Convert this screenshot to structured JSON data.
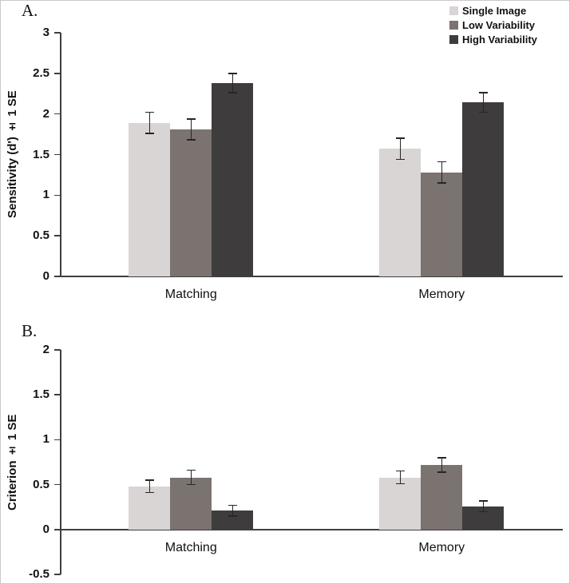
{
  "figure": {
    "panel_a_label": "A.",
    "panel_b_label": "B."
  },
  "legend": {
    "position": "top-right",
    "items": [
      {
        "label": "Single Image",
        "color": "#d8d5d4"
      },
      {
        "label": "Low Variability",
        "color": "#7b7370"
      },
      {
        "label": "High Variability",
        "color": "#3e3c3d"
      }
    ]
  },
  "chart_data": [
    {
      "type": "bar",
      "title": "",
      "ylabel": "Sensitivity (d') ± 1 SE",
      "xlabel": "",
      "categories": [
        "Matching",
        "Memory"
      ],
      "series": [
        {
          "name": "Single Image",
          "color": "#d8d5d4",
          "values": [
            1.89,
            1.57
          ],
          "errors": [
            0.13,
            0.13
          ]
        },
        {
          "name": "Low Variability",
          "color": "#7b7370",
          "values": [
            1.81,
            1.28
          ],
          "errors": [
            0.13,
            0.13
          ]
        },
        {
          "name": "High Variability",
          "color": "#3e3c3d",
          "values": [
            2.38,
            2.14
          ],
          "errors": [
            0.12,
            0.12
          ]
        }
      ],
      "ylim": [
        0,
        3
      ],
      "ytick_step": 0.5,
      "yticks": [
        0,
        0.5,
        1,
        1.5,
        2,
        2.5,
        3
      ],
      "grid": false,
      "legend_position": "top-right",
      "error_bars": true
    },
    {
      "type": "bar",
      "title": "",
      "ylabel": "Criterion ± 1 SE",
      "xlabel": "",
      "categories": [
        "Matching",
        "Memory"
      ],
      "series": [
        {
          "name": "Single Image",
          "color": "#d8d5d4",
          "values": [
            0.48,
            0.58
          ],
          "errors": [
            0.07,
            0.07
          ]
        },
        {
          "name": "Low Variability",
          "color": "#7b7370",
          "values": [
            0.58,
            0.72
          ],
          "errors": [
            0.08,
            0.08
          ]
        },
        {
          "name": "High Variability",
          "color": "#3e3c3d",
          "values": [
            0.21,
            0.26
          ],
          "errors": [
            0.06,
            0.06
          ]
        }
      ],
      "ylim": [
        -0.5,
        2
      ],
      "ytick_step": 0.5,
      "yticks": [
        -0.5,
        0,
        0.5,
        1,
        1.5,
        2
      ],
      "grid": false,
      "legend_position": "none",
      "error_bars": true
    }
  ]
}
